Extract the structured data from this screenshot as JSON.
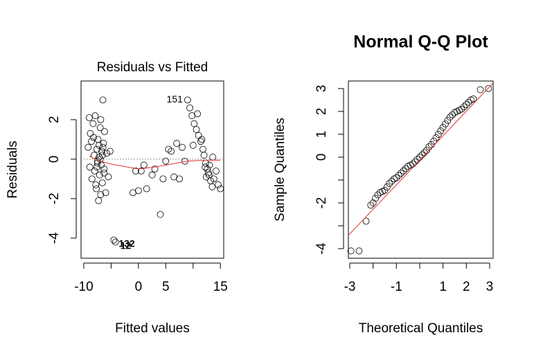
{
  "chart_data": [
    {
      "type": "scatter",
      "title": "Residuals vs Fitted",
      "xlabel": "Fitted values",
      "ylabel": "Residuals",
      "xlim": [
        -10.5,
        15.6
      ],
      "ylim": [
        -5.02,
        3.96
      ],
      "xticks": [
        -10,
        {
          "value": -5,
          "label": null
        },
        0,
        5,
        {
          "value": 10,
          "label": null
        },
        15
      ],
      "yticks": [
        -4,
        -2,
        0,
        2
      ],
      "x": [
        -9.2,
        -9.0,
        -8.8,
        -8.9,
        -8.6,
        -8.5,
        -8.3,
        -8.1,
        -8.0,
        -7.9,
        -7.7,
        -7.6,
        -7.5,
        -7.4,
        -7.3,
        -7.2,
        -7.1,
        -7.0,
        -6.9,
        -6.8,
        -6.7,
        -6.6,
        -6.5,
        -6.4,
        -6.3,
        -6.2,
        -6.0,
        -5.8,
        -5.5,
        -5.2,
        -8.2,
        -7.8,
        -7.5,
        -7.2,
        -6.9,
        -6.6,
        -6.3,
        -7.6,
        -7.0,
        -6.5,
        -4.5,
        -4.2,
        -1.0,
        -0.5,
        0.0,
        0.5,
        1.0,
        1.5,
        2.5,
        3.0,
        4.0,
        4.5,
        5.0,
        5.5,
        6.0,
        6.5,
        7.0,
        7.5,
        8.0,
        8.5,
        9.0,
        9.4,
        9.8,
        10.2,
        10.6,
        11.0,
        11.4,
        11.8,
        12.0,
        12.3,
        12.6,
        12.9,
        13.2,
        13.5,
        13.8,
        14.2,
        14.6,
        15.0,
        10.0,
        10.8,
        11.6,
        12.4,
        13.0,
        13.6,
        12.2,
        12.8
      ],
      "y": [
        0.6,
        2.1,
        1.3,
        -0.4,
        0.9,
        -1.0,
        1.8,
        0.2,
        -0.6,
        2.2,
        -1.5,
        0.5,
        -0.2,
        1.0,
        -2.1,
        0.1,
        -0.8,
        1.6,
        2.0,
        -0.3,
        0.4,
        -1.2,
        3.0,
        0.8,
        -0.5,
        1.4,
        -1.7,
        0.3,
        -0.9,
        0.4,
        1.1,
        -1.3,
        -0.1,
        0.7,
        -1.8,
        0.2,
        -0.7,
        -0.4,
        0.0,
        0.6,
        -4.1,
        -4.2,
        -1.7,
        -0.6,
        -1.6,
        -0.6,
        -0.3,
        -1.5,
        -0.8,
        -0.5,
        -2.8,
        -1.0,
        -0.1,
        0.5,
        0.4,
        -0.9,
        0.8,
        -1.0,
        0.6,
        -0.1,
        3.0,
        2.6,
        2.2,
        1.8,
        1.5,
        1.2,
        0.9,
        0.5,
        0.2,
        -0.2,
        -0.5,
        -0.8,
        -1.1,
        -1.4,
        -1.0,
        -0.6,
        -1.3,
        -1.5,
        0.7,
        2.3,
        1.0,
        -0.9,
        -0.3,
        0.1,
        -0.4,
        -0.7
      ],
      "smooth": {
        "x": [
          -9.0,
          -7.0,
          -5.0,
          -2.0,
          0.0,
          3.0,
          6.0,
          9.0,
          12.0,
          15.0
        ],
        "y": [
          0.15,
          -0.1,
          -0.25,
          -0.4,
          -0.5,
          -0.4,
          -0.25,
          -0.1,
          -0.05,
          -0.05
        ]
      },
      "annotations": [
        {
          "text": "151",
          "x": 9.0,
          "y": 3.0,
          "side": "left"
        },
        {
          "text": "132",
          "x": -4.5,
          "y": -4.1,
          "side": "right"
        },
        {
          "text": "12",
          "x": -4.2,
          "y": -4.2,
          "side": "right"
        }
      ]
    },
    {
      "type": "qq",
      "title": "Normal Q-Q Plot",
      "xlabel": "Theoretical Quantiles",
      "ylabel": "Sample Quantiles",
      "xlim": [
        -3.06,
        3.15
      ],
      "ylim": [
        -4.42,
        3.33
      ],
      "xticks": [
        -3,
        {
          "value": -2,
          "label": null
        },
        -1,
        {
          "value": 0,
          "label": null
        },
        1,
        2,
        3
      ],
      "yticks": [
        -4,
        {
          "value": -3,
          "label": null
        },
        -2,
        {
          "value": -1,
          "label": null
        },
        0,
        1,
        2,
        3
      ],
      "x": [
        -2.95,
        -2.6,
        -2.3,
        -2.1,
        -2.0,
        -1.9,
        -1.8,
        -1.7,
        -1.6,
        -1.5,
        -1.4,
        -1.3,
        -1.2,
        -1.1,
        -1.0,
        -0.9,
        -0.8,
        -0.7,
        -0.6,
        -0.5,
        -0.4,
        -0.3,
        -0.2,
        -0.1,
        0.0,
        0.1,
        0.2,
        0.3,
        0.4,
        0.5,
        0.6,
        0.7,
        0.8,
        0.9,
        1.0,
        1.1,
        1.2,
        1.3,
        1.4,
        1.5,
        1.6,
        1.7,
        1.8,
        1.9,
        2.0,
        2.1,
        2.2,
        2.3,
        2.6,
        2.95
      ],
      "y": [
        -4.1,
        -4.1,
        -2.8,
        -2.1,
        -2.0,
        -1.8,
        -1.65,
        -1.55,
        -1.5,
        -1.45,
        -1.3,
        -1.15,
        -1.05,
        -0.95,
        -0.9,
        -0.8,
        -0.7,
        -0.6,
        -0.5,
        -0.4,
        -0.35,
        -0.3,
        -0.2,
        -0.1,
        0.0,
        0.1,
        0.2,
        0.3,
        0.45,
        0.55,
        0.7,
        0.85,
        1.0,
        1.15,
        1.3,
        1.45,
        1.6,
        1.75,
        1.85,
        1.95,
        2.0,
        2.05,
        2.1,
        2.2,
        2.3,
        2.4,
        2.5,
        2.55,
        2.95,
        3.0
      ],
      "qqline": {
        "x": [
          -3.06,
          3.15
        ],
        "y": [
          -3.42,
          3.24
        ]
      }
    }
  ]
}
